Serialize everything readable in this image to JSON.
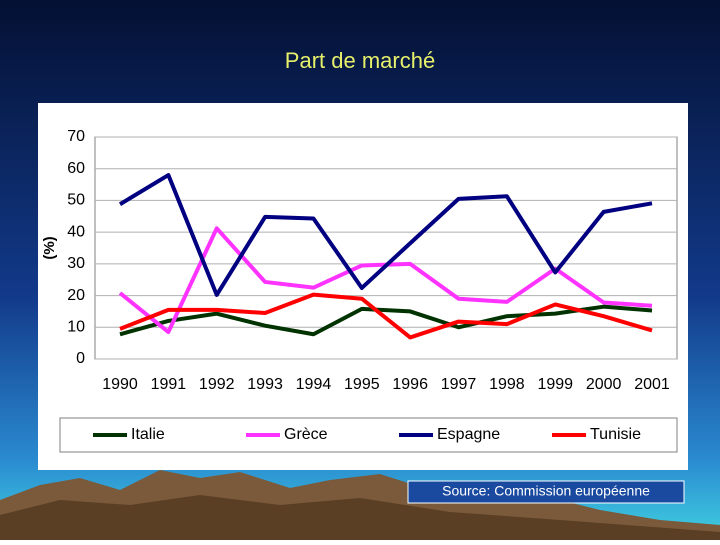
{
  "chart_data": {
    "type": "line",
    "title": "Part de marché",
    "y_label": "(%)",
    "categories": [
      "1990",
      "1991",
      "1992",
      "1993",
      "1994",
      "1995",
      "1996",
      "1997",
      "1998",
      "1999",
      "2000",
      "2001"
    ],
    "series": [
      {
        "name": "Italie",
        "color": "#003300",
        "values": [
          7.8,
          12,
          14.3,
          10.5,
          7.8,
          15.8,
          15,
          10,
          13.5,
          14.3,
          16.5,
          15.3
        ]
      },
      {
        "name": "Grèce",
        "color": "#ff33ff",
        "values": [
          20.8,
          8.5,
          41.2,
          24.3,
          22.5,
          29.5,
          30,
          19,
          18,
          28.5,
          17.8,
          16.8
        ]
      },
      {
        "name": "Espagne",
        "color": "#000080",
        "values": [
          48.8,
          58,
          20.2,
          44.8,
          44.3,
          22.4,
          36.5,
          50.5,
          51.3,
          27.3,
          46.4,
          49.1
        ]
      },
      {
        "name": "Tunisie",
        "color": "#ff0000",
        "values": [
          9.5,
          15.5,
          15.5,
          14.5,
          20.3,
          19,
          6.8,
          11.8,
          11,
          17.2,
          13.5,
          9
        ]
      }
    ],
    "ylim": [
      0,
      70
    ],
    "yticks": [
      0,
      10,
      20,
      30,
      40,
      50,
      60,
      70
    ],
    "grid": true,
    "legend": "bottom",
    "source": "Source: Commission européenne"
  }
}
